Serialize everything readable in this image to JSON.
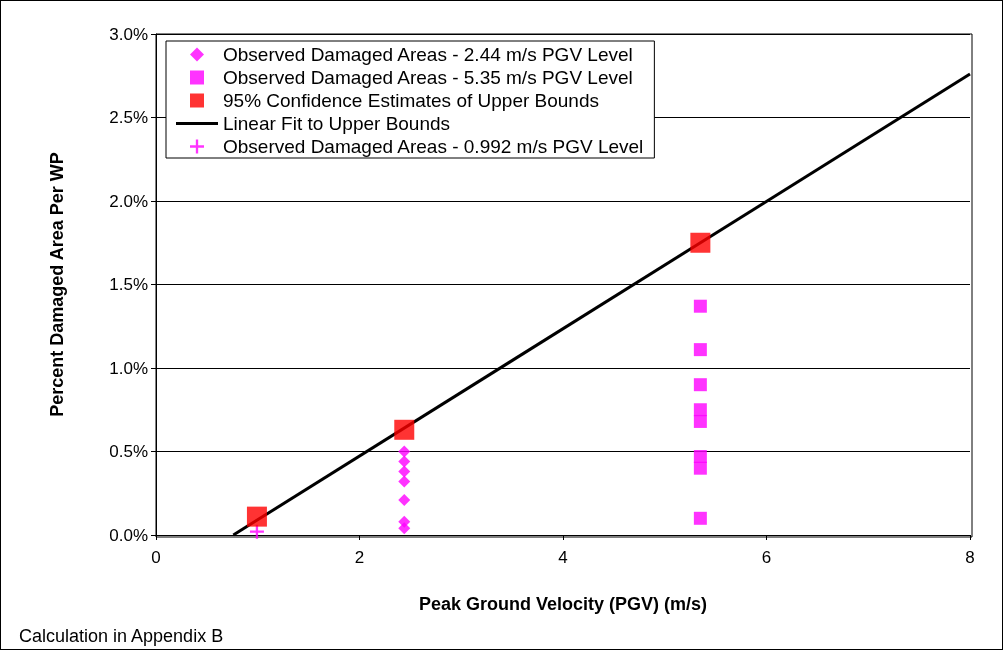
{
  "chart_data": {
    "type": "scatter",
    "xlabel": "Peak Ground Velocity (PGV) (m/s)",
    "ylabel": "Percent Damaged Area Per WP",
    "xlim": [
      0,
      8
    ],
    "xticks": [
      0,
      2,
      4,
      6,
      8
    ],
    "ylim": [
      0,
      3
    ],
    "yticks": [
      {
        "value": 0,
        "label": "0.0%"
      },
      {
        "value": 0.5,
        "label": "0.5%"
      },
      {
        "value": 1,
        "label": "1.0%"
      },
      {
        "value": 1.5,
        "label": "1.5%"
      },
      {
        "value": 2,
        "label": "2.0%"
      },
      {
        "value": 2.5,
        "label": "2.5%"
      },
      {
        "value": 3,
        "label": "3.0%"
      }
    ],
    "grid": "y",
    "legend": "top left",
    "series": [
      {
        "name": "Observed Damaged Areas - 2.44 m/s PGV Level",
        "color": "#ff00ff",
        "marker": "diamond",
        "x": [
          2.44,
          2.44,
          2.44,
          2.44,
          2.44,
          2.44,
          2.44
        ],
        "values": [
          0.5,
          0.44,
          0.38,
          0.32,
          0.21,
          0.08,
          0.04
        ]
      },
      {
        "name": "Observed Damaged Areas - 5.35 m/s PGV Level",
        "color": "#ff00ff",
        "marker": "square",
        "x": [
          5.35,
          5.35,
          5.35,
          5.35,
          5.35,
          5.35,
          5.35,
          5.35
        ],
        "values": [
          1.37,
          1.11,
          0.9,
          0.75,
          0.68,
          0.47,
          0.4,
          0.1
        ]
      },
      {
        "name": "95% Confidence Estimates of Upper Bounds",
        "color": "#ff0000",
        "marker": "square",
        "x": [
          0.992,
          2.44,
          5.35
        ],
        "values": [
          0.11,
          0.63,
          1.75
        ]
      },
      {
        "name": "Linear Fit to Upper Bounds",
        "type": "line",
        "color": "#000000",
        "marker": "none",
        "x": [
          0.76,
          8
        ],
        "values": [
          0,
          2.76
        ]
      },
      {
        "name": "Observed Damaged Areas - 0.992 m/s PGV Level",
        "color": "#ff00ff",
        "marker": "cross",
        "x": [
          0.992
        ],
        "values": [
          0.02
        ]
      }
    ],
    "annotations": [
      "Calculation in Appendix B"
    ]
  }
}
